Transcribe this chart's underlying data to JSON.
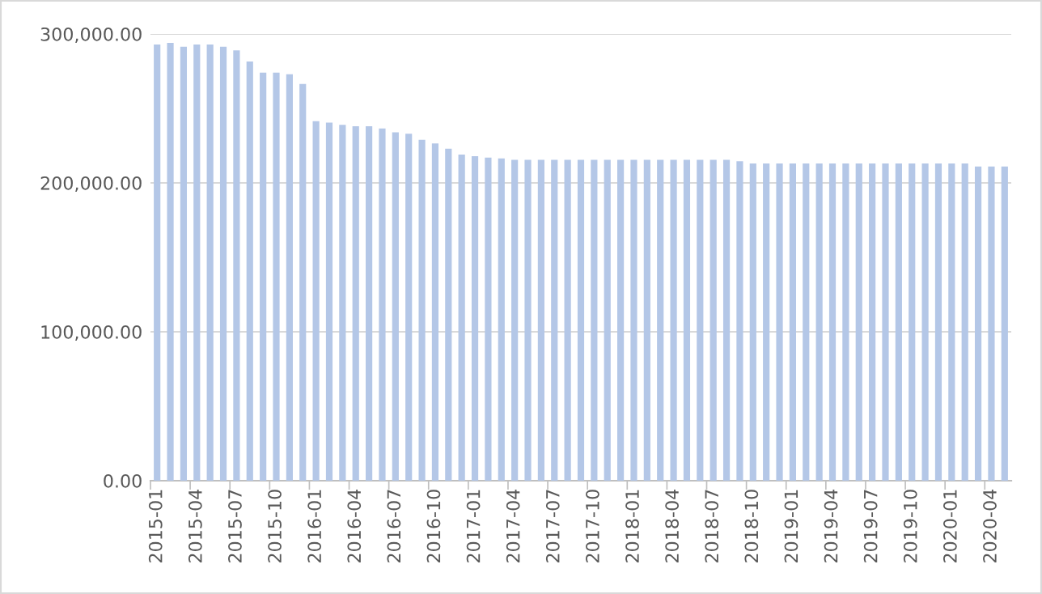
{
  "chart_data": {
    "type": "bar",
    "categories": [
      "2015-01",
      null,
      null,
      "2015-04",
      null,
      null,
      "2015-07",
      null,
      null,
      "2015-10",
      null,
      null,
      "2016-01",
      null,
      null,
      "2016-04",
      null,
      null,
      "2016-07",
      null,
      null,
      "2016-10",
      null,
      null,
      "2017-01",
      null,
      null,
      "2017-04",
      null,
      null,
      "2017-07",
      null,
      null,
      "2017-10",
      null,
      null,
      "2018-01",
      null,
      null,
      "2018-04",
      null,
      null,
      "2018-07",
      null,
      null,
      "2018-10",
      null,
      null,
      "2019-01",
      null,
      null,
      "2019-04",
      null,
      null,
      "2019-07",
      null,
      null,
      "2019-10",
      null,
      null,
      "2020-01",
      null,
      null,
      "2020-04",
      null
    ],
    "values": [
      293000,
      294000,
      291500,
      293000,
      293000,
      291500,
      289000,
      281500,
      274000,
      274000,
      273000,
      266500,
      241500,
      240500,
      239000,
      238000,
      238000,
      236500,
      234000,
      233000,
      229000,
      226500,
      223000,
      219000,
      218000,
      217000,
      216500,
      215500,
      215500,
      215500,
      215500,
      215500,
      215500,
      215500,
      215500,
      215500,
      215500,
      215500,
      215500,
      215500,
      215500,
      215500,
      215500,
      215500,
      214500,
      213000,
      213000,
      213000,
      213000,
      213000,
      213000,
      213000,
      213000,
      213000,
      213000,
      213000,
      213000,
      213000,
      213000,
      213000,
      213000,
      213000,
      211000,
      211000,
      211000
    ],
    "color": "#b4c7e7",
    "ylim": [
      0,
      300000
    ],
    "yticks": [
      {
        "value": 0,
        "label": "0.00"
      },
      {
        "value": 100000,
        "label": "100,000.00"
      },
      {
        "value": 200000,
        "label": "200,000.00"
      },
      {
        "value": 300000,
        "label": "300,000.00"
      }
    ],
    "grid": "y"
  }
}
